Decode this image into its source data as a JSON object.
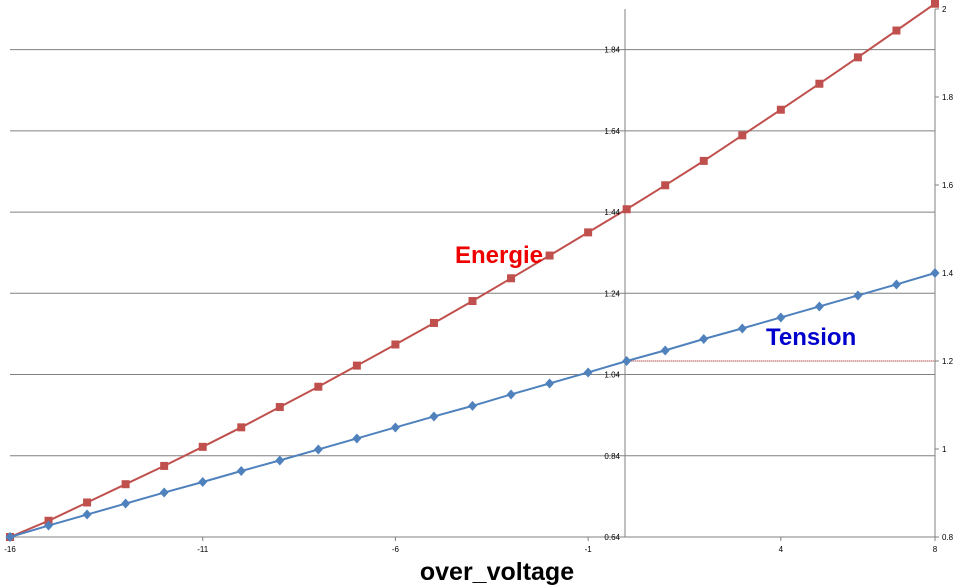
{
  "chart_data": {
    "type": "line",
    "xlabel": "over_voltage",
    "x_ticks": [
      "-16",
      "-11",
      "-6",
      "-1",
      "4",
      "8"
    ],
    "xlim": [
      -16,
      8
    ],
    "y_left_ticks": [
      "0.64",
      "0.84",
      "1.04",
      "1.24",
      "1.44",
      "1.64",
      "1.84"
    ],
    "ylim_left": [
      0.64,
      1.94
    ],
    "y_right_ticks": [
      "0.8",
      "1",
      "1.2",
      "1.4",
      "1.6",
      "1.8",
      "2"
    ],
    "ylim_right": [
      0.8,
      2.0
    ],
    "grid": true,
    "annotations": [
      {
        "text": "Energie",
        "color": "#ee0000"
      },
      {
        "text": "Tension",
        "color": "#0000cc"
      }
    ],
    "reference_line": {
      "axis": "right",
      "y": 1.2,
      "x_from": 0,
      "x_to": 8,
      "color": "#8b0000",
      "style": "dotted"
    },
    "series": [
      {
        "color": "#c0504d",
        "marker": "square",
        "axis": "left",
        "x": [
          -16,
          -15,
          -14,
          -13,
          -12,
          -11,
          -10,
          -9,
          -8,
          -7,
          -6,
          -5,
          -4,
          -3,
          -2,
          -1,
          0,
          1,
          2,
          3,
          4,
          5,
          6,
          7,
          8
        ],
        "values": [
          0.64,
          0.68,
          0.725,
          0.77,
          0.815,
          0.862,
          0.91,
          0.96,
          1.01,
          1.062,
          1.114,
          1.167,
          1.221,
          1.277,
          1.333,
          1.39,
          1.447,
          1.506,
          1.566,
          1.629,
          1.692,
          1.756,
          1.821,
          1.887,
          1.953
        ]
      },
      {
        "color": "#4f81bd",
        "marker": "diamond",
        "axis": "right",
        "x": [
          -16,
          -15,
          -14,
          -13,
          -12,
          -11,
          -10,
          -9,
          -8,
          -7,
          -6,
          -5,
          -4,
          -3,
          -2,
          -1,
          0,
          1,
          2,
          3,
          4,
          5,
          6,
          7,
          8
        ],
        "values": [
          0.8,
          0.826,
          0.851,
          0.876,
          0.901,
          0.925,
          0.95,
          0.974,
          0.999,
          1.024,
          1.049,
          1.074,
          1.098,
          1.124,
          1.149,
          1.174,
          1.2,
          1.224,
          1.25,
          1.274,
          1.299,
          1.324,
          1.349,
          1.374,
          1.4
        ]
      }
    ]
  }
}
